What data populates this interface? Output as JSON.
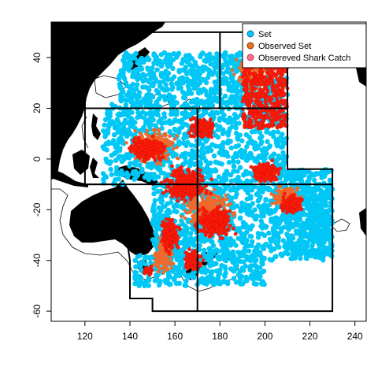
{
  "map": {
    "x_ticks": [
      "120",
      "140",
      "160",
      "180",
      "200",
      "220",
      "240"
    ],
    "y_ticks": [
      "40",
      "20",
      "0",
      "-20",
      "-40",
      "-60"
    ],
    "xlim": [
      105,
      245
    ],
    "ylim": [
      -64,
      54
    ],
    "legend": {
      "placement": "top-right",
      "items": [
        {
          "label": "Set",
          "fill": "#00c7f5",
          "stroke": "#1a6f99"
        },
        {
          "label": "Observed Set",
          "fill": "#e8711a",
          "stroke": "#7a3e11"
        },
        {
          "label": "Obsereved Shark Catch",
          "fill": "#ff6f8c",
          "stroke": "#b8325a"
        }
      ]
    },
    "colors": {
      "set": "#00c7f5",
      "observed_set": "#ef6a2a",
      "shark_catch": "#ff1a0a",
      "land": "#000000",
      "outline": "#000000"
    }
  },
  "chart_data": {
    "type": "scatter",
    "xlabel": "",
    "ylabel": "",
    "xlim": [
      105,
      245
    ],
    "ylim": [
      -64,
      54
    ],
    "x_ticks": [
      120,
      140,
      160,
      180,
      200,
      220,
      240
    ],
    "y_ticks": [
      40,
      20,
      0,
      -20,
      -40,
      -60
    ],
    "regions_boundary_lon_lat": [
      [
        [
          120,
          50
        ],
        [
          210,
          50
        ],
        [
          210,
          -4
        ],
        [
          230,
          -4
        ],
        [
          230,
          -60
        ],
        [
          150,
          -60
        ],
        [
          150,
          -55
        ],
        [
          140,
          -55
        ],
        [
          140,
          -40
        ],
        [
          135,
          -10
        ],
        [
          120,
          -10
        ],
        [
          120,
          50
        ]
      ]
    ],
    "region_division_lines_lon_lat": [
      [
        [
          120,
          20
        ],
        [
          210,
          20
        ]
      ],
      [
        [
          180,
          50
        ],
        [
          180,
          20
        ]
      ],
      [
        [
          170,
          20
        ],
        [
          170,
          -60
        ]
      ],
      [
        [
          120,
          -10
        ],
        [
          230,
          -10
        ]
      ]
    ]
  }
}
